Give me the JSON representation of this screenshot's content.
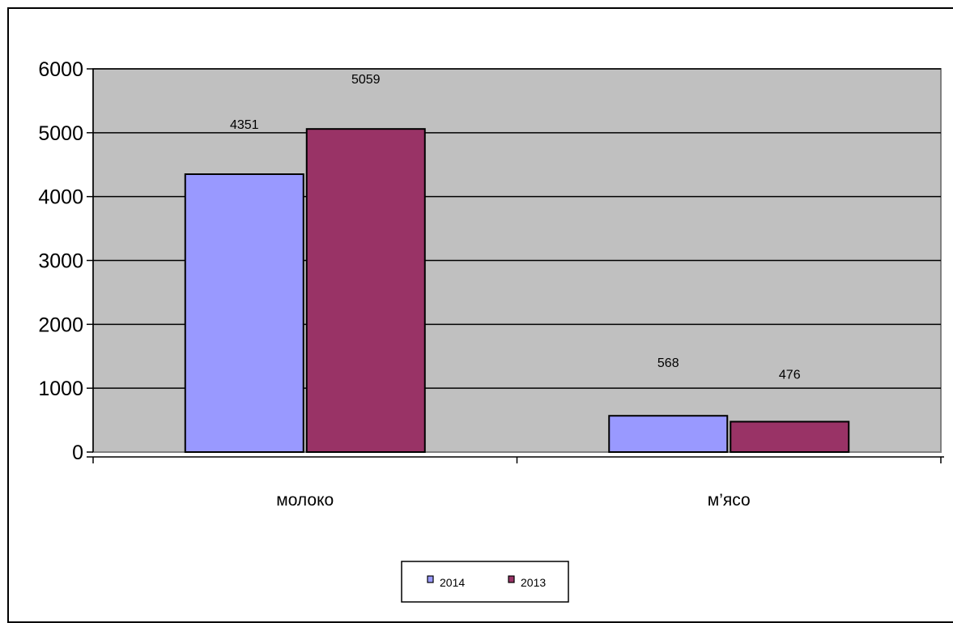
{
  "chart_data": {
    "type": "bar",
    "categories": [
      "молоко",
      "м’ясо"
    ],
    "series": [
      {
        "name": "2014",
        "values": [
          4351,
          568
        ],
        "color": "#9999ff"
      },
      {
        "name": "2013",
        "values": [
          5059,
          476
        ],
        "color": "#993366"
      }
    ],
    "data_labels": [
      [
        "4351",
        "568"
      ],
      [
        "5059",
        "476"
      ]
    ],
    "y_ticks": [
      "0",
      "1000",
      "2000",
      "3000",
      "4000",
      "5000",
      "6000"
    ],
    "ylim": [
      0,
      6000
    ],
    "grid": true,
    "legend": "bottom-center",
    "plot_background": "#c0c0c0",
    "title": "",
    "xlabel": "",
    "ylabel": ""
  }
}
